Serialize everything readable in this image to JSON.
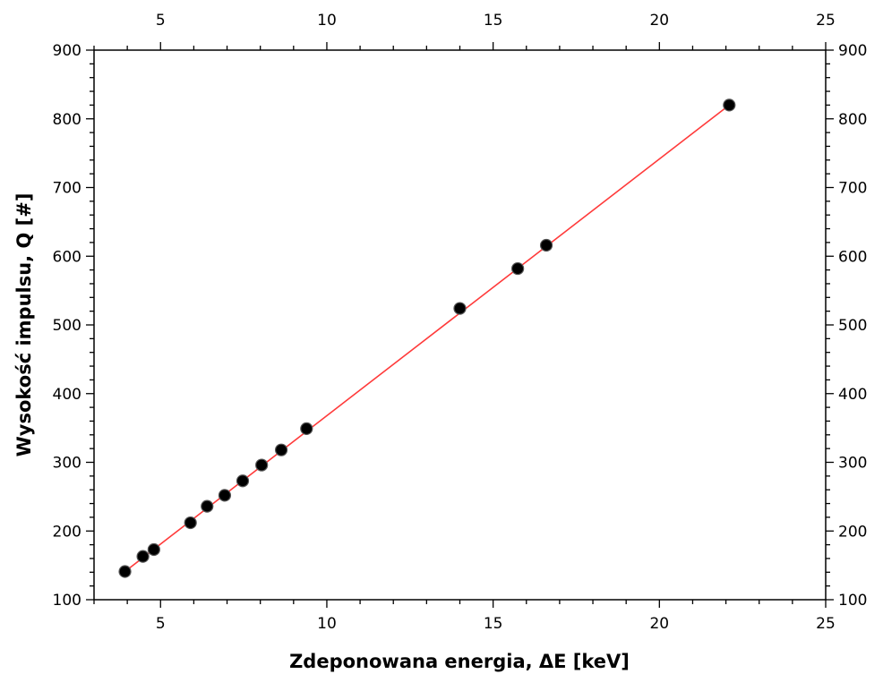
{
  "chart_data": {
    "type": "scatter",
    "xlabel": "Zdeponowana energia, ΔE  [keV]",
    "ylabel": "Wysokość impulsu, Q [#]",
    "xlim": [
      3,
      25
    ],
    "ylim": [
      100,
      900
    ],
    "x_major_ticks": [
      5,
      10,
      15,
      20,
      25
    ],
    "x_tick_labels": [
      "5",
      "10",
      "15",
      "20",
      "25"
    ],
    "y_major_ticks": [
      100,
      200,
      300,
      400,
      500,
      600,
      700,
      800,
      900
    ],
    "y_tick_labels": [
      "100",
      "200",
      "300",
      "400",
      "500",
      "600",
      "700",
      "800",
      "900"
    ],
    "x_minor_step": 1,
    "y_minor_step": 20,
    "mirror_axes": true,
    "grid": false,
    "legend": "none",
    "series": [
      {
        "type": "scatter",
        "color": "#000000",
        "x": [
          3.93,
          4.47,
          4.8,
          5.9,
          6.4,
          6.93,
          7.47,
          8.04,
          8.63,
          9.39,
          14.0,
          15.74,
          16.6,
          22.1
        ],
        "y": [
          141,
          163,
          173,
          212,
          236,
          252,
          273,
          296,
          318,
          349,
          524,
          582,
          616,
          820
        ]
      },
      {
        "type": "line",
        "color": "#ff3a3a",
        "x": [
          3.93,
          22.1
        ],
        "y": [
          141,
          820
        ]
      }
    ]
  }
}
